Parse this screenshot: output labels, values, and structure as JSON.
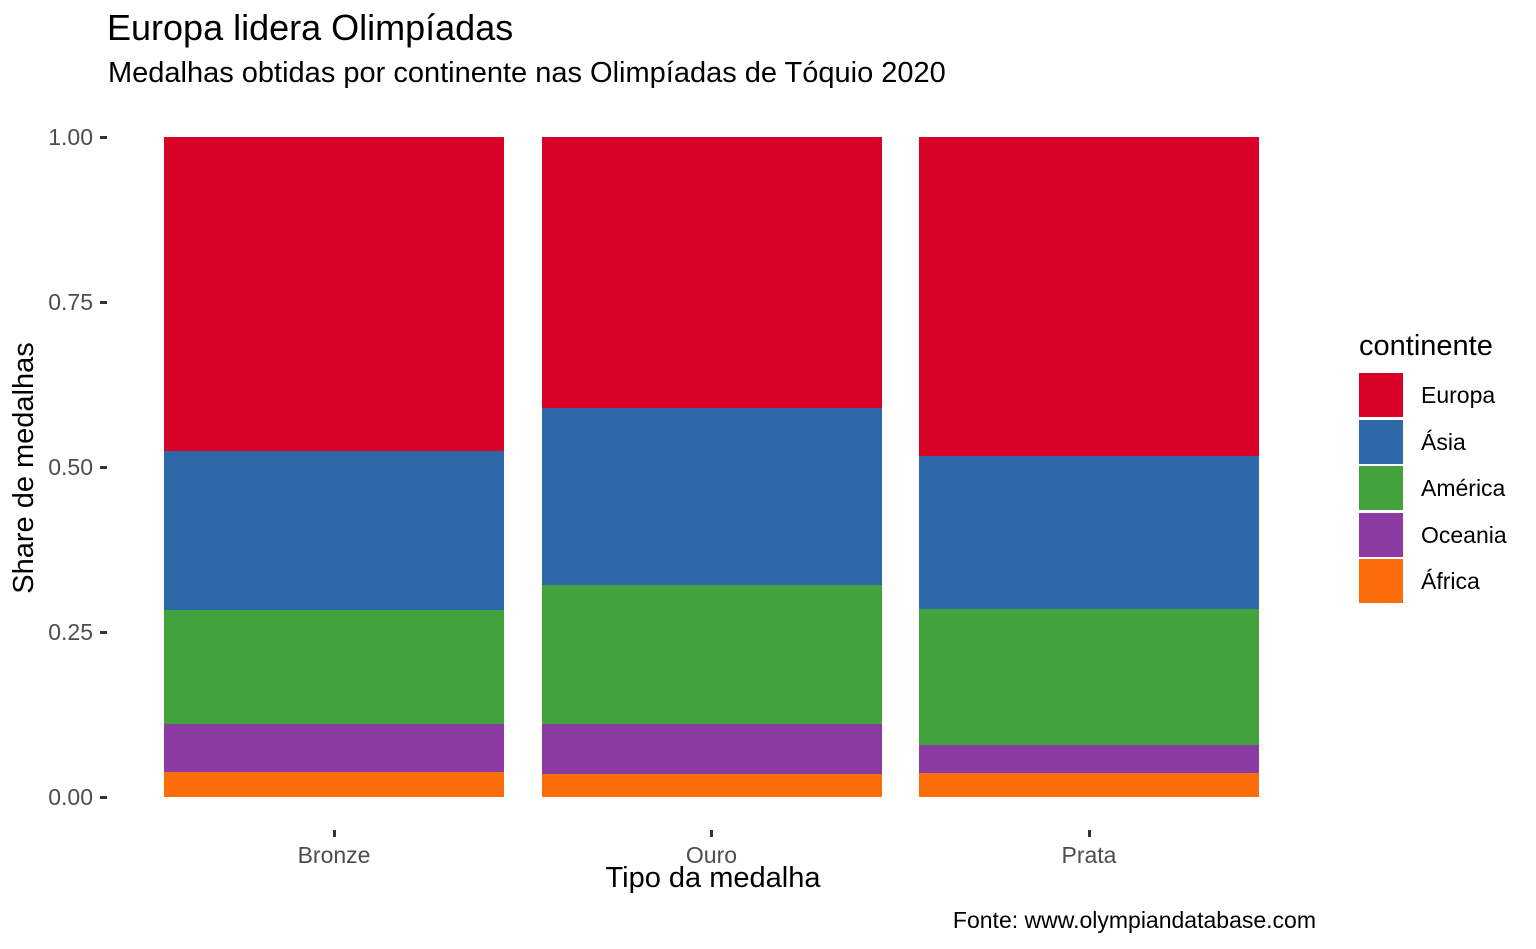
{
  "title": "Europa lidera Olimpíadas",
  "subtitle": "Medalhas obtidas por continente nas Olimpíadas de Tóquio 2020",
  "caption": "Fonte: www.olympiandatabase.com",
  "chart_data": {
    "type": "bar",
    "stacked": true,
    "normalized": true,
    "title": "Europa lidera Olimpíadas",
    "subtitle": "Medalhas obtidas por continente nas Olimpíadas de Tóquio 2020",
    "xlabel": "Tipo da medalha",
    "ylabel": "Share de medalhas",
    "categories": [
      "Bronze",
      "Ouro",
      "Prata"
    ],
    "series": [
      {
        "name": "Europa",
        "color": "#D90226",
        "values": [
          0.476,
          0.411,
          0.483
        ]
      },
      {
        "name": "Ásia",
        "color": "#2D69A8",
        "values": [
          0.241,
          0.268,
          0.232
        ]
      },
      {
        "name": "América",
        "color": "#42A23C",
        "values": [
          0.173,
          0.211,
          0.206
        ]
      },
      {
        "name": "Oceania",
        "color": "#8A3AA0",
        "values": [
          0.072,
          0.075,
          0.043
        ]
      },
      {
        "name": "África",
        "color": "#FB6C0A",
        "values": [
          0.038,
          0.035,
          0.036
        ]
      }
    ],
    "stack_order_bottom_to_top": [
      "África",
      "Oceania",
      "América",
      "Ásia",
      "Europa"
    ],
    "ylim": [
      0,
      1
    ],
    "yticks": [
      "0.00",
      "0.25",
      "0.50",
      "0.75",
      "1.00"
    ],
    "grid": false,
    "legend_title": "continente",
    "legend_position": "right",
    "axis_text_color": "#4D4D4D",
    "tick_mark_color": "#333333",
    "background_color": "#FFFFFF"
  }
}
